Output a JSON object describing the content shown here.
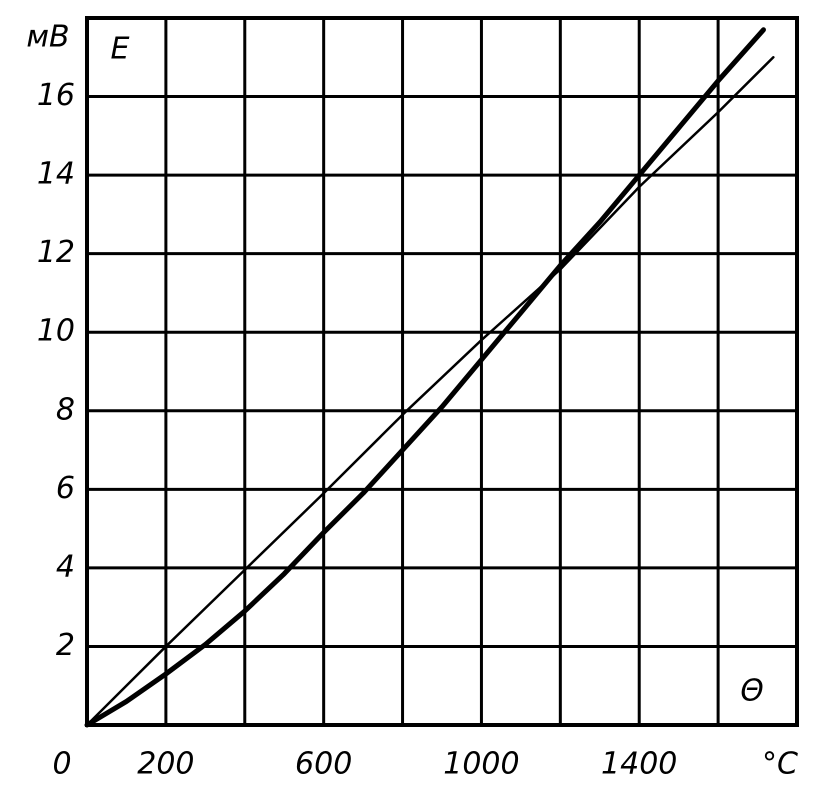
{
  "chart_data": {
    "type": "line",
    "y_unit_label": "мВ",
    "y_label": "E",
    "x_label": "Θ",
    "x_unit_label": "°C",
    "xlim": [
      0,
      1800
    ],
    "ylim": [
      0,
      18
    ],
    "xticks": [
      0,
      200,
      600,
      1000,
      1400
    ],
    "yticks": [
      2,
      4,
      6,
      8,
      10,
      12,
      14,
      16
    ],
    "xgrid": [
      200,
      400,
      600,
      800,
      1000,
      1200,
      1400,
      1600
    ],
    "ygrid": [
      2,
      4,
      6,
      8,
      10,
      12,
      14,
      16
    ],
    "grid": true,
    "series": [
      {
        "color": "#000000",
        "x": [
          0,
          200,
          400,
          600,
          800,
          1000,
          1200,
          1400,
          1600,
          1740
        ],
        "values": [
          0,
          2,
          3.95,
          5.9,
          7.9,
          9.8,
          11.6,
          13.7,
          15.6,
          17.0
        ]
      },
      {
        "color": "#000000",
        "x": [
          0,
          100,
          200,
          300,
          400,
          500,
          600,
          700,
          800,
          900,
          1000,
          1100,
          1200,
          1300,
          1400,
          1500,
          1600,
          1715
        ],
        "values": [
          0,
          0.6,
          1.3,
          2.05,
          2.9,
          3.85,
          4.9,
          5.9,
          7.0,
          8.1,
          9.3,
          10.5,
          11.7,
          12.8,
          14.0,
          15.2,
          16.4,
          17.7
        ]
      }
    ]
  }
}
